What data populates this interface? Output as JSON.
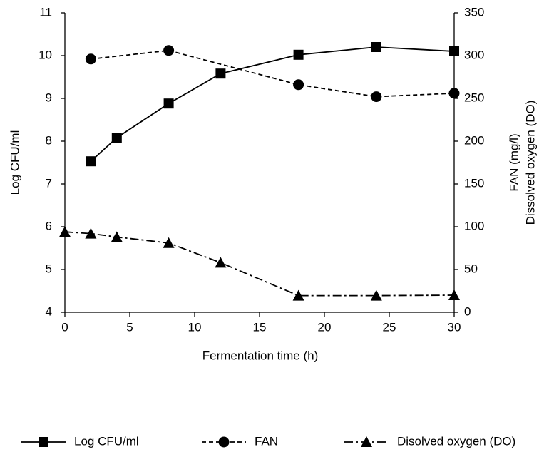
{
  "chart_data": {
    "type": "line",
    "xlabel": "Fermentation time (h)",
    "ylabel": "Log CFU/ml",
    "y2label": [
      "FAN (mg/l)",
      "Dissolved oxygen (DO)"
    ],
    "xlim": [
      0,
      30
    ],
    "xticks": [
      0,
      5,
      10,
      15,
      20,
      25,
      30
    ],
    "ylim": [
      4,
      11
    ],
    "yticks": [
      4,
      5,
      6,
      7,
      8,
      9,
      10,
      11
    ],
    "y2lim": [
      0,
      350
    ],
    "y2ticks": [
      0,
      50,
      100,
      150,
      200,
      250,
      300,
      350
    ],
    "grid": false,
    "legend": "bottom",
    "series": [
      {
        "name": "Log CFU/ml",
        "color": "#000000",
        "dash": "solid",
        "marker": "square",
        "x": [
          2,
          4,
          8,
          12,
          18,
          24,
          30
        ],
        "values": [
          7.53,
          8.08,
          8.88,
          9.58,
          10.02,
          10.2,
          10.1
        ]
      },
      {
        "name": "FAN",
        "color": "#000000",
        "dash": "dashed",
        "marker": "circle",
        "axis": "y2",
        "x": [
          2,
          8,
          18,
          24,
          30
        ],
        "values": [
          296,
          306,
          266,
          252,
          256
        ]
      },
      {
        "name": "Disolved oxygen (DO)",
        "color": "#000000",
        "dash": "dashdot",
        "marker": "triangle",
        "axis": "y2",
        "x": [
          0,
          2,
          4,
          8,
          12,
          18,
          24,
          30
        ],
        "values": [
          94,
          92,
          88,
          81,
          58,
          19.5,
          19.5,
          20
        ]
      }
    ]
  }
}
